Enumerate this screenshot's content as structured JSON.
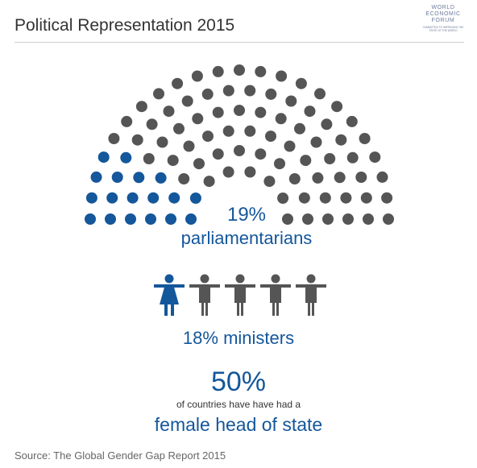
{
  "header": {
    "title": "Political Representation 2015",
    "logo": {
      "lines": [
        "WORLD",
        "ECONOMIC",
        "FORUM"
      ],
      "tagline": "COMMITTED TO IMPROVING THE STATE OF THE WORLD"
    }
  },
  "parliament": {
    "female_share": 0.19,
    "female_color": "#14579b",
    "male_color": "#555555",
    "pct_label": "19%",
    "label": "parliamentarians"
  },
  "ministers": {
    "female_count": 1,
    "total_count": 5,
    "female_color": "#14579b",
    "male_color": "#555555",
    "label": "18% ministers"
  },
  "head_of_state": {
    "pct": "50%",
    "line1": "of countries have have had a",
    "line2": "female head of state"
  },
  "source": "Source: The Global Gender Gap Report 2015"
}
